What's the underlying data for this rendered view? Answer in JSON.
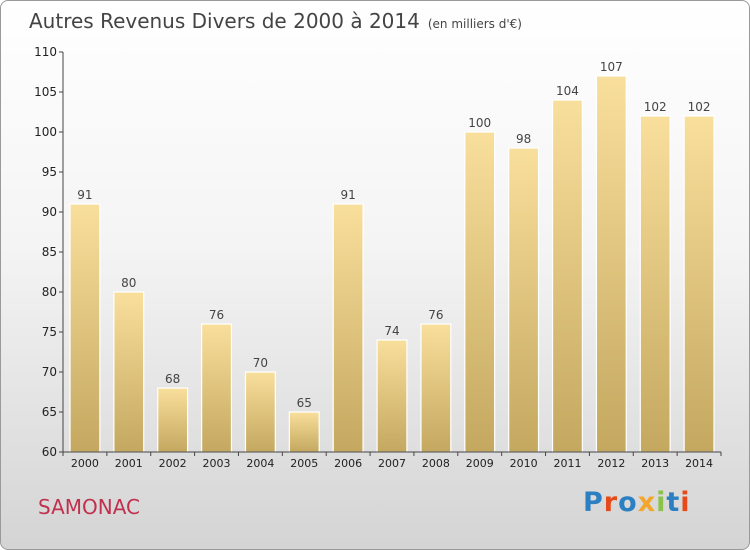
{
  "title": "Autres Revenus Divers de 2000 à 2014",
  "subtitle": "(en milliers d'€)",
  "town": "SAMONAC",
  "logo": {
    "text": "Proxiti",
    "colors": [
      "#2c7fc1",
      "#e64a19",
      "#2c7fc1",
      "#f4a62a",
      "#8bc34a",
      "#2c7fc1",
      "#e64a19"
    ]
  },
  "colors": {
    "bar_top": "#f9df9c",
    "bar_bottom": "#c4a860",
    "axis": "#444444",
    "grid": "#cccccc"
  },
  "chart_data": {
    "type": "bar",
    "title": "Autres Revenus Divers de 2000 à 2014",
    "subtitle": "(en milliers d'€)",
    "xlabel": "",
    "ylabel": "",
    "categories": [
      "2000",
      "2001",
      "2002",
      "2003",
      "2004",
      "2005",
      "2006",
      "2007",
      "2008",
      "2009",
      "2010",
      "2011",
      "2012",
      "2013",
      "2014"
    ],
    "values": [
      91,
      80,
      68,
      76,
      70,
      65,
      91,
      74,
      76,
      100,
      98,
      104,
      107,
      102,
      102
    ],
    "ylim": [
      60,
      110
    ],
    "yticks": [
      60,
      65,
      70,
      75,
      80,
      85,
      90,
      95,
      100,
      105,
      110
    ],
    "grid": false,
    "data_labels": true
  }
}
